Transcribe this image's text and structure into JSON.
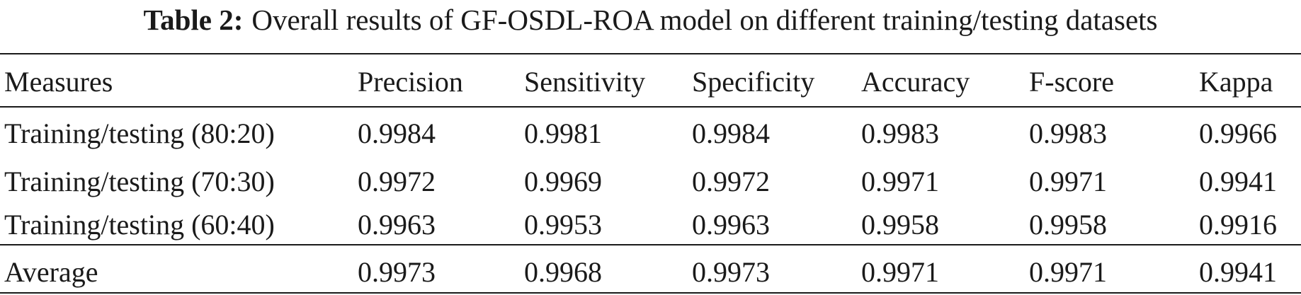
{
  "caption": {
    "label": "Table 2:",
    "text": "Overall results of GF-OSDL-ROA model on different training/testing datasets"
  },
  "table": {
    "headers": [
      "Measures",
      "Precision",
      "Sensitivity",
      "Specificity",
      "Accuracy",
      "F-score",
      "Kappa"
    ],
    "rows": [
      {
        "name": "Training/testing (80:20)",
        "values": [
          "0.9984",
          "0.9981",
          "0.9984",
          "0.9983",
          "0.9983",
          "0.9966"
        ]
      },
      {
        "name": "Training/testing (70:30)",
        "values": [
          "0.9972",
          "0.9969",
          "0.9972",
          "0.9971",
          "0.9971",
          "0.9941"
        ]
      },
      {
        "name": "Training/testing (60:40)",
        "values": [
          "0.9963",
          "0.9953",
          "0.9963",
          "0.9958",
          "0.9958",
          "0.9916"
        ]
      }
    ],
    "average": {
      "name": "Average",
      "values": [
        "0.9973",
        "0.9968",
        "0.9973",
        "0.9971",
        "0.9971",
        "0.9941"
      ]
    }
  }
}
